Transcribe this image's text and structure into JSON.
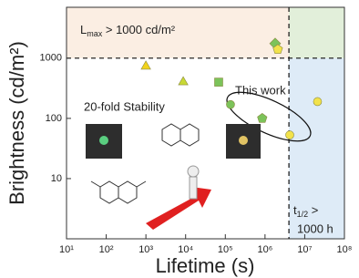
{
  "chart_data": {
    "type": "scatter",
    "x_label": "Lifetime (s)",
    "y_label": "Brightness (cd/m²)",
    "xscale": "log",
    "yscale": "log",
    "xlim": [
      10,
      100000000
    ],
    "ylim": [
      1,
      7000
    ],
    "xticks": [
      {
        "value": 10,
        "label": "10¹"
      },
      {
        "value": 100,
        "label": "10²"
      },
      {
        "value": 1000,
        "label": "10³"
      },
      {
        "value": 10000,
        "label": "10⁴"
      },
      {
        "value": 100000,
        "label": "10⁵"
      },
      {
        "value": 1000000,
        "label": "10⁶"
      },
      {
        "value": 10000000,
        "label": "10⁷"
      },
      {
        "value": 100000000,
        "label": "10⁸"
      }
    ],
    "yticks": [
      10,
      100,
      1000
    ],
    "threshold_x": 4000000,
    "threshold_y": 1000,
    "region_colors": {
      "top_left": "#fbeee3",
      "top_right": "#e2efda",
      "bottom_right": "#deebf7"
    },
    "x": [
      1000,
      8700,
      68000,
      135000,
      850000,
      1800000,
      2100000,
      21000000,
      4200000
    ],
    "values": [
      730,
      400,
      400,
      170,
      100,
      1750,
      1400,
      190,
      53
    ],
    "markers": [
      "triangle",
      "triangle",
      "square",
      "circle",
      "pentagon",
      "diamond",
      "pentagon",
      "circle",
      "circle"
    ],
    "colors": [
      "#f2d31b",
      "#c9d934",
      "#7cc35a",
      "#7cc35a",
      "#7cc35a",
      "#7cc35a",
      "#f2e24b",
      "#f2e24b",
      "#f2e24b"
    ],
    "annotations": {
      "lmax": {
        "symbol": "L",
        "sub": "max",
        "rest": " > 1000 cd/m²"
      },
      "thalf": {
        "symbol": "t",
        "sub": "1/2",
        "rest": " >",
        "line2": "1000 h"
      },
      "stability": "20-fold Stability",
      "this_work": "This work"
    }
  }
}
